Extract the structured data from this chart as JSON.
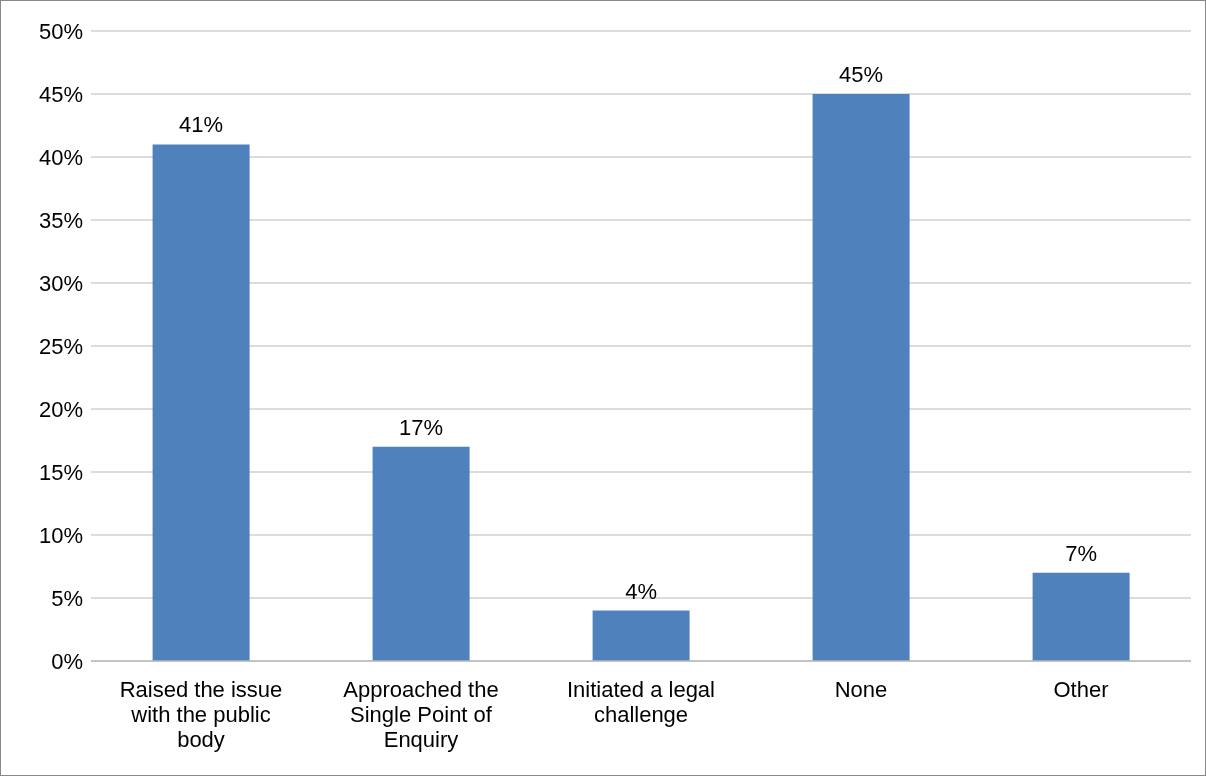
{
  "chart_data": {
    "type": "bar",
    "categories": [
      "Raised the issue with the public body",
      "Approached the Single Point of Enquiry",
      "Initiated a legal challenge",
      "None",
      "Other"
    ],
    "values": [
      41,
      17,
      4,
      45,
      7
    ],
    "color": "#4f81bd",
    "value_labels": [
      "41%",
      "17%",
      "4%",
      "45%",
      "7%"
    ],
    "ylim": [
      0,
      50
    ],
    "yticks": [
      {
        "value": 0,
        "label": "0%"
      },
      {
        "value": 5,
        "label": "5%"
      },
      {
        "value": 10,
        "label": "10%"
      },
      {
        "value": 15,
        "label": "15%"
      },
      {
        "value": 20,
        "label": "20%"
      },
      {
        "value": 25,
        "label": "25%"
      },
      {
        "value": 30,
        "label": "30%"
      },
      {
        "value": 35,
        "label": "35%"
      },
      {
        "value": 40,
        "label": "40%"
      },
      {
        "value": 45,
        "label": "45%"
      },
      {
        "value": 50,
        "label": "50%"
      }
    ],
    "grid": "y",
    "legend": false
  }
}
